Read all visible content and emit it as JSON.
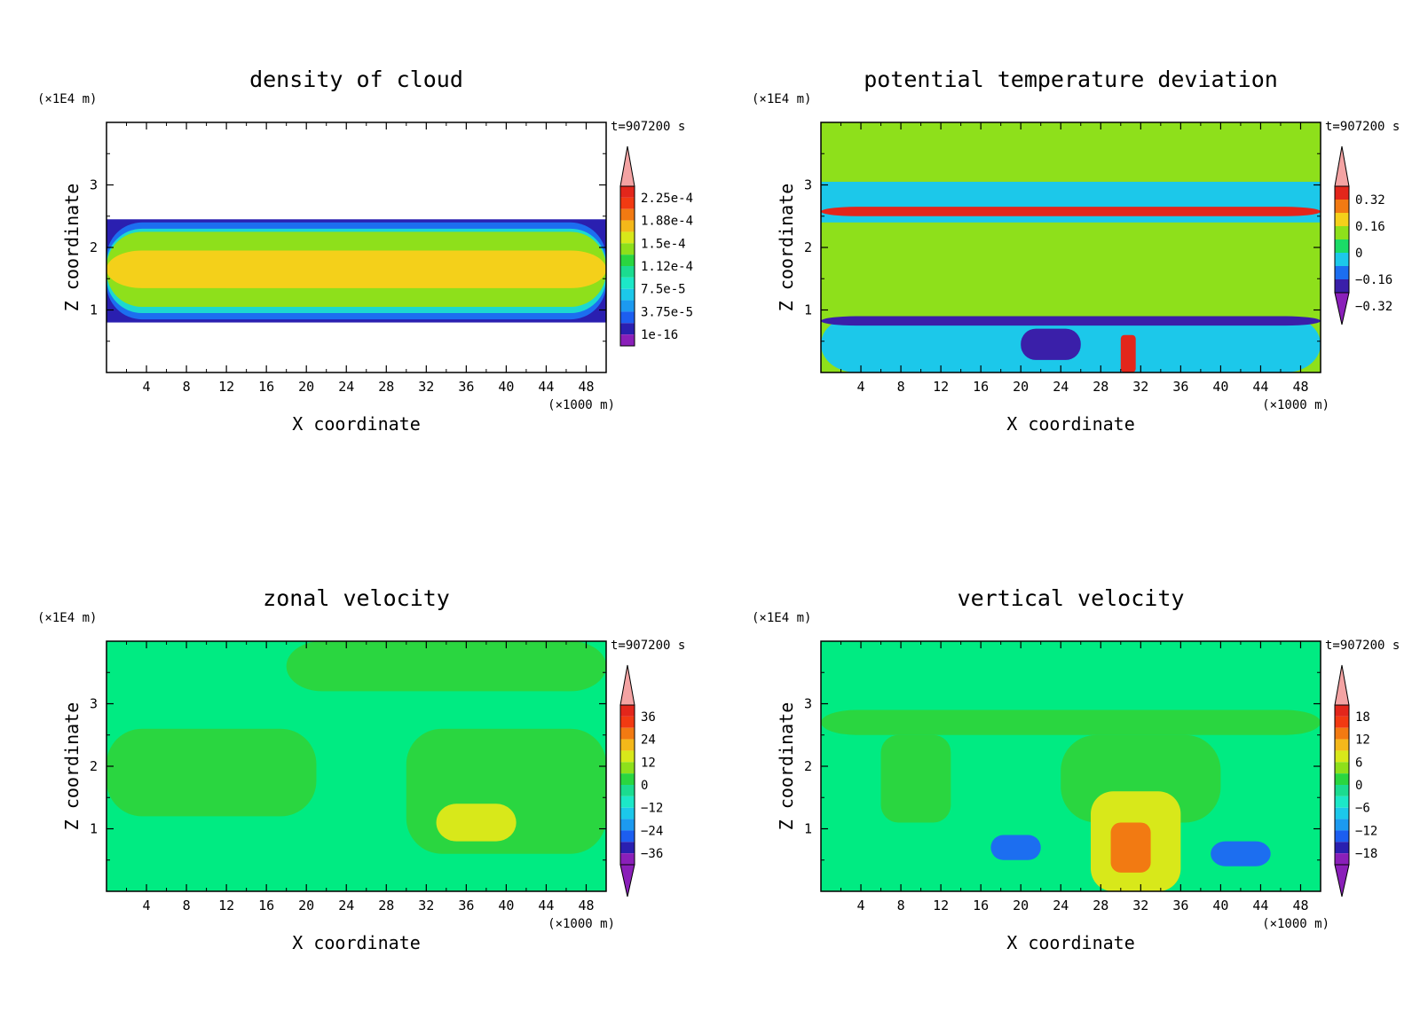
{
  "chart_data": [
    {
      "type": "heatmap",
      "title": "density of cloud",
      "xlabel": "X coordinate",
      "ylabel": "Z coordinate",
      "x_unit": "(×1000 m)",
      "y_unit": "(×1E4 m)",
      "time_label": "t=907200 s",
      "xlim": [
        0,
        50
      ],
      "ylim": [
        0,
        4
      ],
      "x_ticks": [
        4,
        8,
        12,
        16,
        20,
        24,
        28,
        32,
        36,
        40,
        44,
        48
      ],
      "y_ticks": [
        1,
        2,
        3
      ],
      "colorbar_levels": [
        "2.25e-4",
        "1.88e-4",
        "1.5e-4",
        "1.12e-4",
        "7.5e-5",
        "3.75e-5",
        "1e-16"
      ],
      "colorbar_extend": "max",
      "regions": [
        {
          "x": [
            0,
            50
          ],
          "y": [
            0.8,
            2.45
          ],
          "level": "1e-16"
        },
        {
          "x": [
            0,
            50
          ],
          "y": [
            0.85,
            2.4
          ],
          "level": "3.75e-5"
        },
        {
          "x": [
            0,
            50
          ],
          "y": [
            0.95,
            2.3
          ],
          "level": "7.5e-5"
        },
        {
          "x": [
            0,
            50
          ],
          "y": [
            1.05,
            2.25
          ],
          "level": "1.12e-4"
        },
        {
          "x": [
            0,
            50
          ],
          "y": [
            1.35,
            1.95
          ],
          "level": "1.5e-4"
        }
      ]
    },
    {
      "type": "heatmap",
      "title": "potential temperature deviation",
      "xlabel": "X coordinate",
      "ylabel": "Z coordinate",
      "x_unit": "(×1000 m)",
      "y_unit": "(×1E4 m)",
      "time_label": "t=907200 s",
      "xlim": [
        0,
        50
      ],
      "ylim": [
        0,
        4
      ],
      "x_ticks": [
        4,
        8,
        12,
        16,
        20,
        24,
        28,
        32,
        36,
        40,
        44,
        48
      ],
      "y_ticks": [
        1,
        2,
        3
      ],
      "colorbar_levels": [
        "0.32",
        "0.16",
        "0",
        "−0.16",
        "−0.32"
      ],
      "colorbar_extend": "both",
      "regions": [
        {
          "x": [
            0,
            50
          ],
          "y": [
            2.4,
            3.05
          ],
          "level": "−0.16"
        },
        {
          "x": [
            0,
            50
          ],
          "y": [
            2.5,
            2.65
          ],
          "level": "0.32"
        },
        {
          "x": [
            0,
            50
          ],
          "y": [
            0,
            0.9
          ],
          "level": "−0.16"
        },
        {
          "x": [
            0,
            50
          ],
          "y": [
            0.75,
            0.9
          ],
          "level": "−0.32"
        },
        {
          "x": [
            20,
            26
          ],
          "y": [
            0.2,
            0.7
          ],
          "level": "−0.32"
        },
        {
          "x": [
            30,
            31.5
          ],
          "y": [
            0,
            0.6
          ],
          "level": "0.32"
        }
      ]
    },
    {
      "type": "heatmap",
      "title": "zonal velocity",
      "xlabel": "X coordinate",
      "ylabel": "Z coordinate",
      "x_unit": "(×1000 m)",
      "y_unit": "(×1E4 m)",
      "time_label": "t=907200 s",
      "xlim": [
        0,
        50
      ],
      "ylim": [
        0,
        4
      ],
      "x_ticks": [
        4,
        8,
        12,
        16,
        20,
        24,
        28,
        32,
        36,
        40,
        44,
        48
      ],
      "y_ticks": [
        1,
        2,
        3
      ],
      "colorbar_levels": [
        "36",
        "24",
        "12",
        "0",
        "−12",
        "−24",
        "−36"
      ],
      "colorbar_extend": "both",
      "regions": [
        {
          "x": [
            0,
            50
          ],
          "y": [
            0,
            4
          ],
          "level": "−12"
        },
        {
          "x": [
            0,
            21
          ],
          "y": [
            1.2,
            2.6
          ],
          "level": "0"
        },
        {
          "x": [
            30,
            50
          ],
          "y": [
            0.6,
            2.6
          ],
          "level": "0"
        },
        {
          "x": [
            18,
            50
          ],
          "y": [
            3.2,
            4
          ],
          "level": "0"
        },
        {
          "x": [
            33,
            41
          ],
          "y": [
            0.8,
            1.4
          ],
          "level": "12"
        }
      ]
    },
    {
      "type": "heatmap",
      "title": "vertical velocity",
      "xlabel": "X coordinate",
      "ylabel": "Z coordinate",
      "x_unit": "(×1000 m)",
      "y_unit": "(×1E4 m)",
      "time_label": "t=907200 s",
      "xlim": [
        0,
        50
      ],
      "ylim": [
        0,
        4
      ],
      "x_ticks": [
        4,
        8,
        12,
        16,
        20,
        24,
        28,
        32,
        36,
        40,
        44,
        48
      ],
      "y_ticks": [
        1,
        2,
        3
      ],
      "colorbar_levels": [
        "18",
        "12",
        "6",
        "0",
        "−6",
        "−12",
        "−18"
      ],
      "colorbar_extend": "both",
      "regions": [
        {
          "x": [
            0,
            50
          ],
          "y": [
            0,
            4
          ],
          "level": "−6"
        },
        {
          "x": [
            0,
            50
          ],
          "y": [
            2.5,
            2.9
          ],
          "level": "0"
        },
        {
          "x": [
            6,
            13
          ],
          "y": [
            1.1,
            2.5
          ],
          "level": "0"
        },
        {
          "x": [
            24,
            40
          ],
          "y": [
            1.1,
            2.5
          ],
          "level": "0"
        },
        {
          "x": [
            27,
            36
          ],
          "y": [
            0,
            1.6
          ],
          "level": "6"
        },
        {
          "x": [
            29,
            33
          ],
          "y": [
            0.3,
            1.1
          ],
          "level": "12"
        },
        {
          "x": [
            17,
            22
          ],
          "y": [
            0.5,
            0.9
          ],
          "level": "−12"
        },
        {
          "x": [
            39,
            45
          ],
          "y": [
            0.4,
            0.8
          ],
          "level": "−12"
        }
      ]
    }
  ]
}
